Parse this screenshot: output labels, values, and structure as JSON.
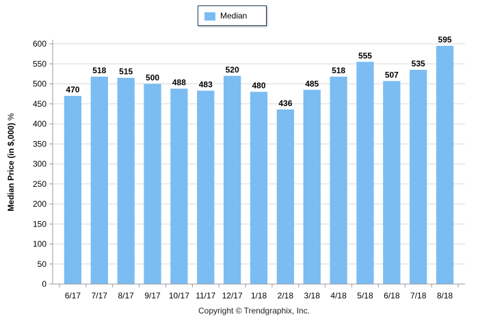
{
  "legend": {
    "label": "Median",
    "color": "#7bbcf2"
  },
  "y_axis_title": {
    "main": "Median Price (in $,000)",
    "suffix": "%"
  },
  "footer": "Copyright © Trendgraphix, Inc.",
  "colors": {
    "bar": "#7bbcf2",
    "grid": "#d9d9d9",
    "axis": "#999999"
  },
  "chart_data": {
    "type": "bar",
    "categories": [
      "6/17",
      "7/17",
      "8/17",
      "9/17",
      "10/17",
      "11/17",
      "12/17",
      "1/18",
      "2/18",
      "3/18",
      "4/18",
      "5/18",
      "6/18",
      "7/18",
      "8/18"
    ],
    "series": [
      {
        "name": "Median",
        "values": [
          470,
          518,
          515,
          500,
          488,
          483,
          520,
          480,
          436,
          485,
          518,
          555,
          507,
          535,
          595
        ]
      }
    ],
    "ylabel": "Median Price (in $,000) %",
    "ylim": [
      0,
      600
    ],
    "yticks": [
      0,
      50,
      100,
      150,
      200,
      250,
      300,
      350,
      400,
      450,
      500,
      550,
      600
    ],
    "grid": "horizontal",
    "legend_position": "top-center",
    "data_labels": true
  }
}
